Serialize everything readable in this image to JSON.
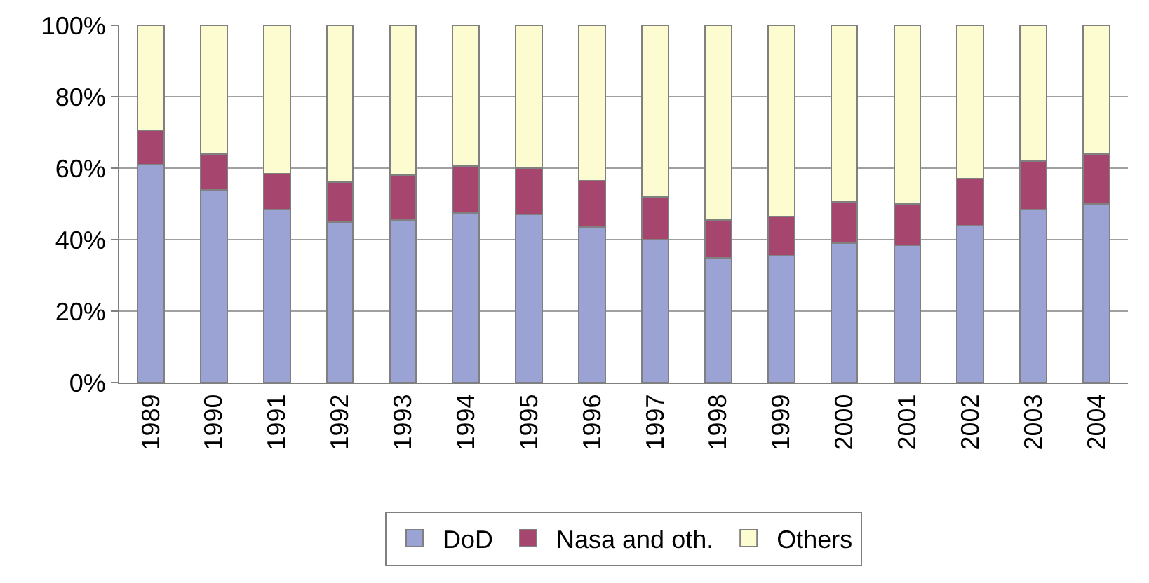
{
  "chart_data": {
    "type": "bar",
    "stacked": true,
    "categories": [
      "1989",
      "1990",
      "1991",
      "1992",
      "1993",
      "1994",
      "1995",
      "1996",
      "1997",
      "1998",
      "1999",
      "2000",
      "2001",
      "2002",
      "2003",
      "2004"
    ],
    "series": [
      {
        "name": "DoD",
        "color": "#9aa3d4",
        "values": [
          61,
          54,
          48.5,
          45,
          45.5,
          47.5,
          47,
          43.5,
          40,
          35,
          35.5,
          39,
          38.5,
          44,
          48.5,
          50
        ]
      },
      {
        "name": "Nasa and oth.",
        "color": "#a6466f",
        "values": [
          9.5,
          10,
          10,
          11,
          12.5,
          13,
          13,
          13,
          12,
          10.5,
          11,
          11.5,
          11.5,
          13,
          13.5,
          14
        ]
      },
      {
        "name": "Others",
        "color": "#fdfbd0",
        "values": [
          29.5,
          36,
          41.5,
          44,
          42,
          39.5,
          40,
          43.5,
          48,
          54.5,
          53.5,
          49.5,
          50,
          43,
          38,
          36
        ]
      }
    ],
    "ylim": [
      0,
      100
    ],
    "yticks": [
      {
        "value": 0,
        "label": "0%"
      },
      {
        "value": 20,
        "label": "20%"
      },
      {
        "value": 40,
        "label": "40%"
      },
      {
        "value": 60,
        "label": "60%"
      },
      {
        "value": 80,
        "label": "80%"
      },
      {
        "value": 100,
        "label": "100%"
      }
    ],
    "grid": "y",
    "legend": "bottom"
  }
}
